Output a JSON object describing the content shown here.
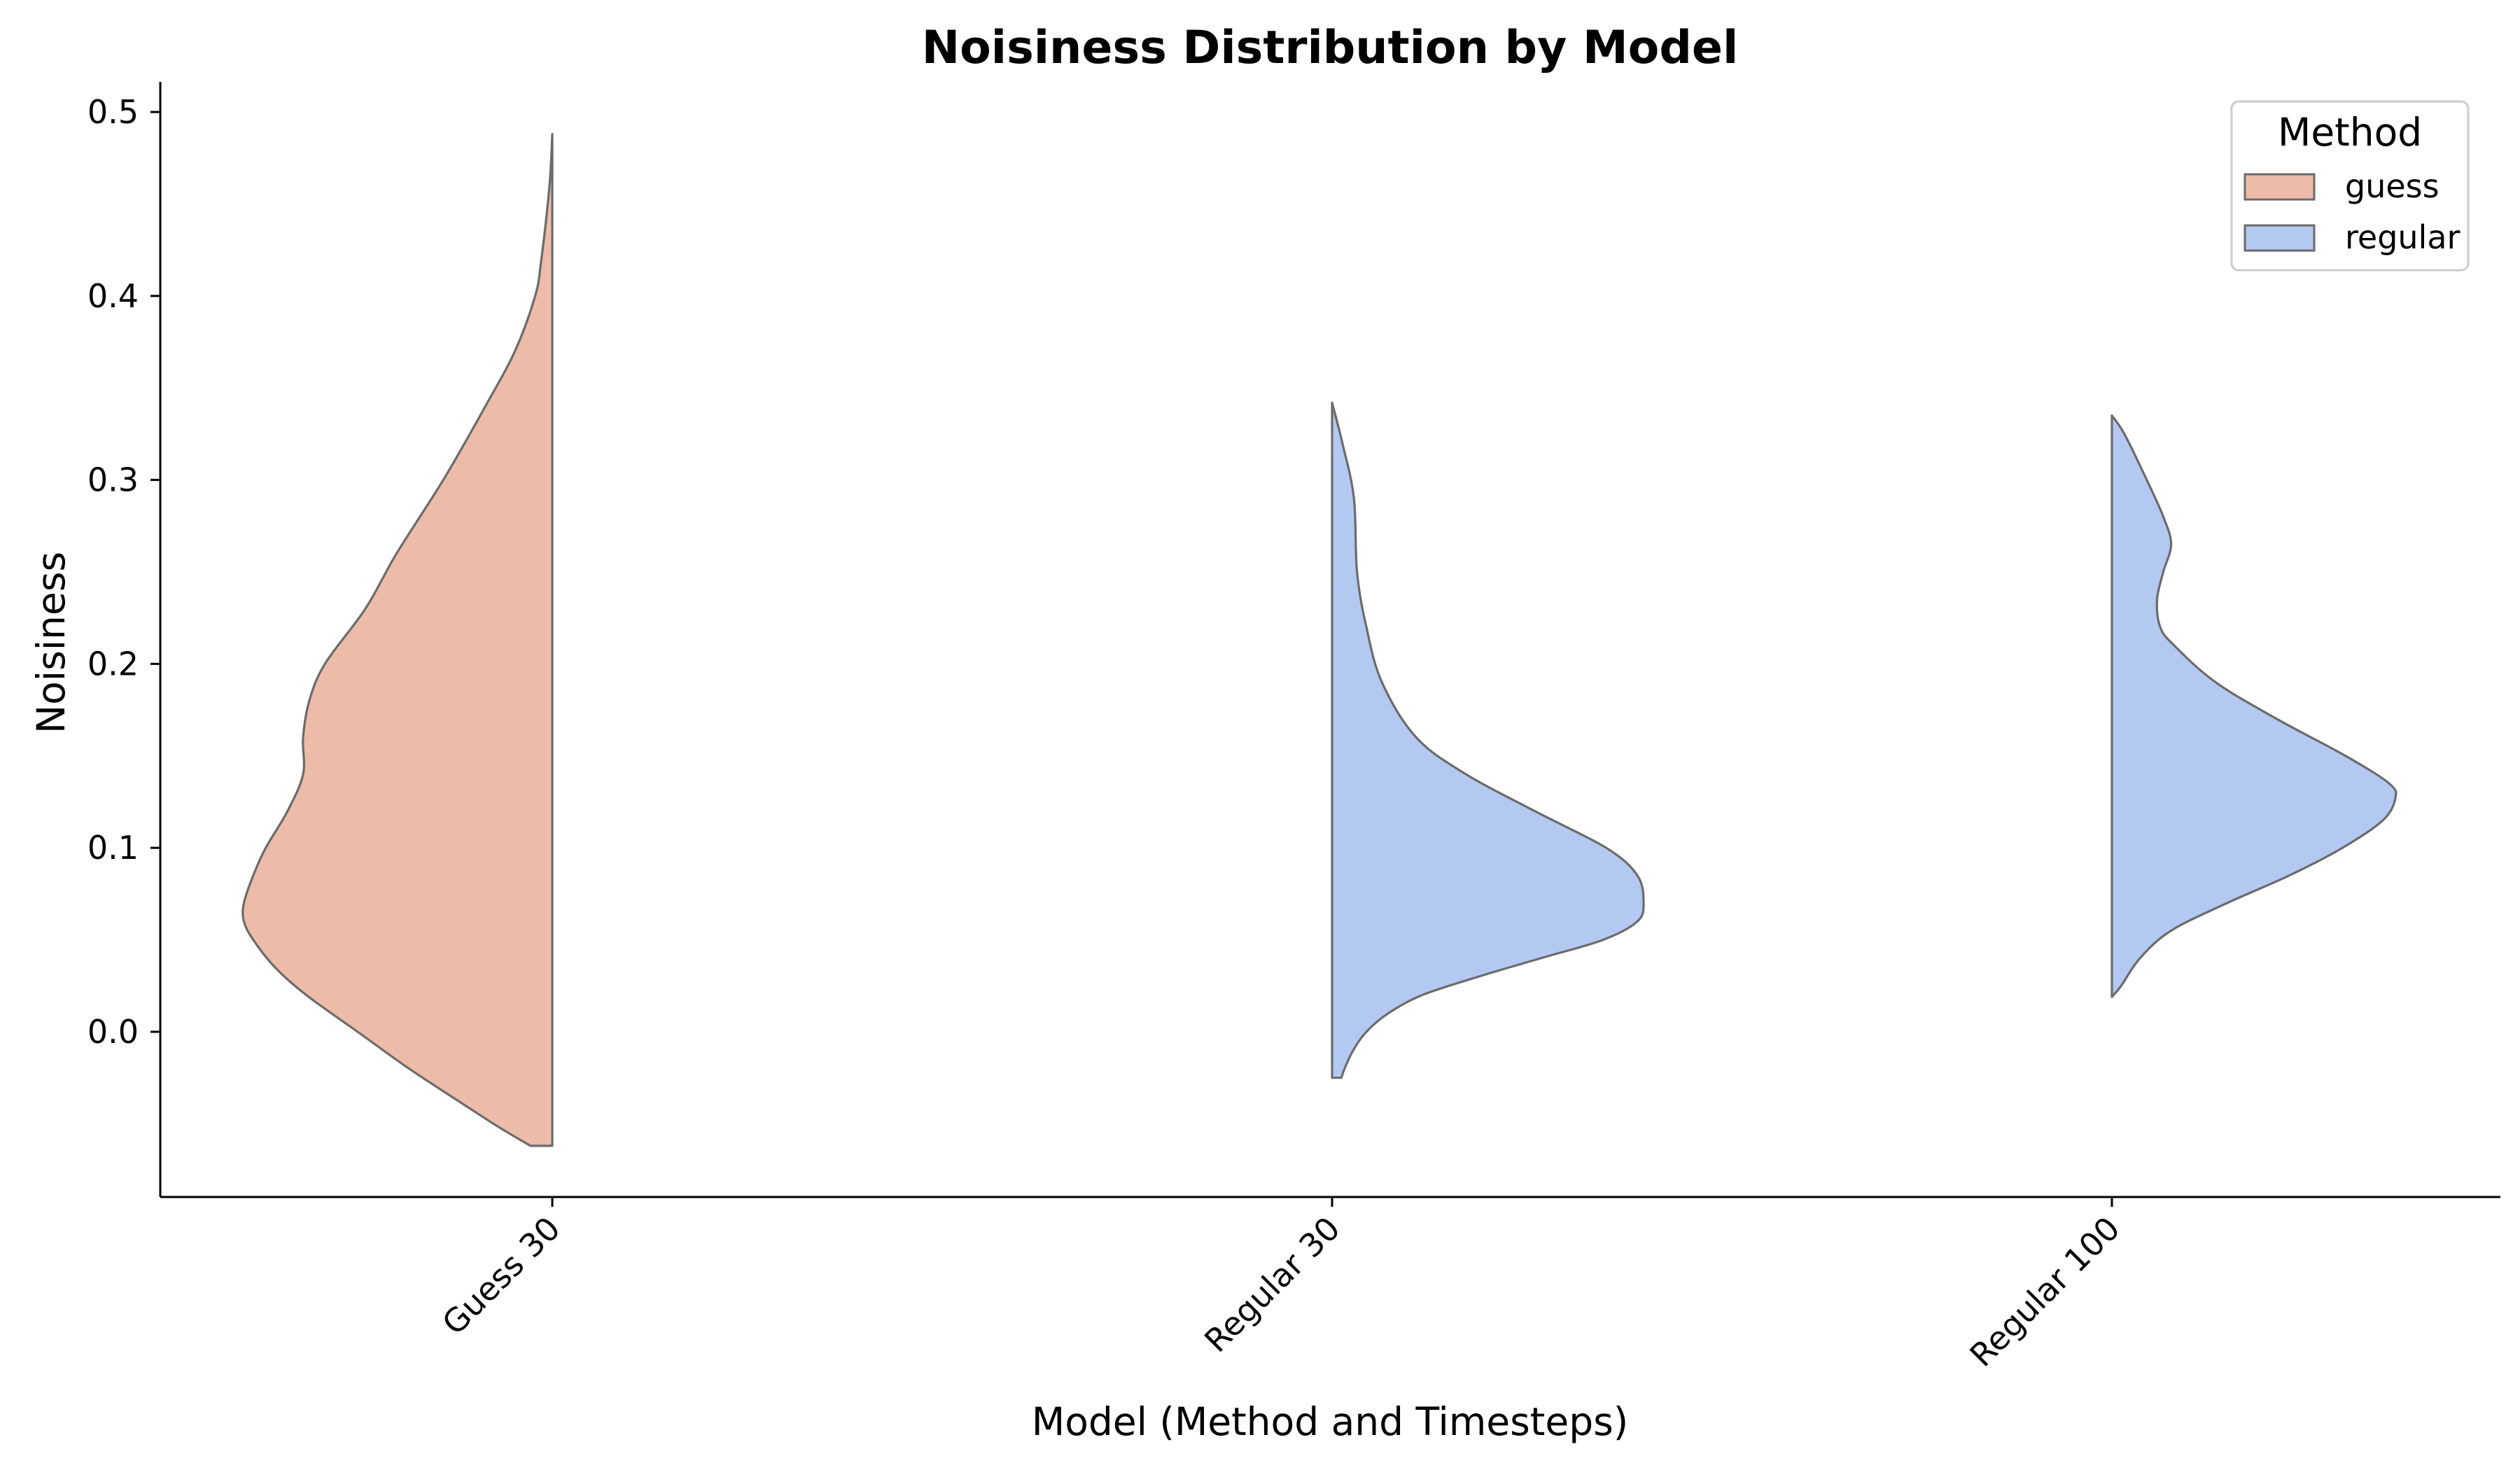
{
  "chart_data": {
    "type": "violin",
    "split": true,
    "title": "Noisiness Distribution by Model",
    "xlabel": "Model (Method and Timesteps)",
    "ylabel": "Noisiness",
    "categories": [
      "Guess 30",
      "Regular 30",
      "Regular 100"
    ],
    "category_method": [
      "guess",
      "regular",
      "regular"
    ],
    "yticks": [
      0.0,
      0.1,
      0.2,
      0.3,
      0.4,
      0.5
    ],
    "ytick_labels": [
      "0.0",
      "0.1",
      "0.2",
      "0.3",
      "0.4",
      "0.5"
    ],
    "ylim": [
      -0.09,
      0.517
    ],
    "grid": false,
    "legend": {
      "title": "Method",
      "position": "top-right",
      "entries": [
        {
          "label": "guess",
          "color": "#ecbca8"
        },
        {
          "label": "regular",
          "color": "#b4c9f2"
        }
      ]
    },
    "colors": {
      "guess": "#ecbca8",
      "regular": "#b4c9f2",
      "outline": "#6b6b6b"
    },
    "series": [
      {
        "category": "Guess 30",
        "method": "guess",
        "side": "left",
        "range": [
          -0.062,
          0.488
        ],
        "density": [
          [
            0.488,
            0.0
          ],
          [
            0.46,
            0.009
          ],
          [
            0.42,
            0.035
          ],
          [
            0.4,
            0.055
          ],
          [
            0.37,
            0.12
          ],
          [
            0.34,
            0.215
          ],
          [
            0.3,
            0.35
          ],
          [
            0.26,
            0.5
          ],
          [
            0.23,
            0.6
          ],
          [
            0.2,
            0.73
          ],
          [
            0.18,
            0.78
          ],
          [
            0.16,
            0.8
          ],
          [
            0.14,
            0.8
          ],
          [
            0.12,
            0.85
          ],
          [
            0.1,
            0.92
          ],
          [
            0.085,
            0.96
          ],
          [
            0.07,
            0.99
          ],
          [
            0.06,
            0.99
          ],
          [
            0.05,
            0.96
          ],
          [
            0.035,
            0.89
          ],
          [
            0.02,
            0.79
          ],
          [
            0.0,
            0.625
          ],
          [
            -0.02,
            0.46
          ],
          [
            -0.04,
            0.28
          ],
          [
            -0.052,
            0.17
          ],
          [
            -0.062,
            0.07
          ]
        ]
      },
      {
        "category": "Regular 30",
        "method": "regular",
        "side": "right",
        "range": [
          -0.025,
          0.342
        ],
        "density": [
          [
            0.342,
            0.0
          ],
          [
            0.32,
            0.033
          ],
          [
            0.29,
            0.07
          ],
          [
            0.25,
            0.08
          ],
          [
            0.22,
            0.11
          ],
          [
            0.19,
            0.16
          ],
          [
            0.16,
            0.27
          ],
          [
            0.14,
            0.43
          ],
          [
            0.12,
            0.65
          ],
          [
            0.1,
            0.88
          ],
          [
            0.085,
            0.98
          ],
          [
            0.07,
            1.0
          ],
          [
            0.06,
            0.98
          ],
          [
            0.05,
            0.87
          ],
          [
            0.04,
            0.67
          ],
          [
            0.03,
            0.47
          ],
          [
            0.02,
            0.29
          ],
          [
            0.01,
            0.18
          ],
          [
            0.0,
            0.11
          ],
          [
            -0.01,
            0.068
          ],
          [
            -0.02,
            0.04
          ],
          [
            -0.025,
            0.03
          ]
        ]
      },
      {
        "category": "Regular 100",
        "method": "regular",
        "side": "right",
        "range": [
          0.019,
          0.335
        ],
        "density": [
          [
            0.335,
            0.0
          ],
          [
            0.325,
            0.04
          ],
          [
            0.3,
            0.112
          ],
          [
            0.28,
            0.165
          ],
          [
            0.265,
            0.19
          ],
          [
            0.25,
            0.165
          ],
          [
            0.235,
            0.145
          ],
          [
            0.22,
            0.155
          ],
          [
            0.21,
            0.2
          ],
          [
            0.19,
            0.333
          ],
          [
            0.17,
            0.53
          ],
          [
            0.15,
            0.75
          ],
          [
            0.135,
            0.89
          ],
          [
            0.127,
            0.91
          ],
          [
            0.115,
            0.87
          ],
          [
            0.1,
            0.74
          ],
          [
            0.085,
            0.57
          ],
          [
            0.07,
            0.37
          ],
          [
            0.055,
            0.19
          ],
          [
            0.04,
            0.09
          ],
          [
            0.025,
            0.03
          ],
          [
            0.019,
            0.0
          ]
        ]
      }
    ]
  }
}
